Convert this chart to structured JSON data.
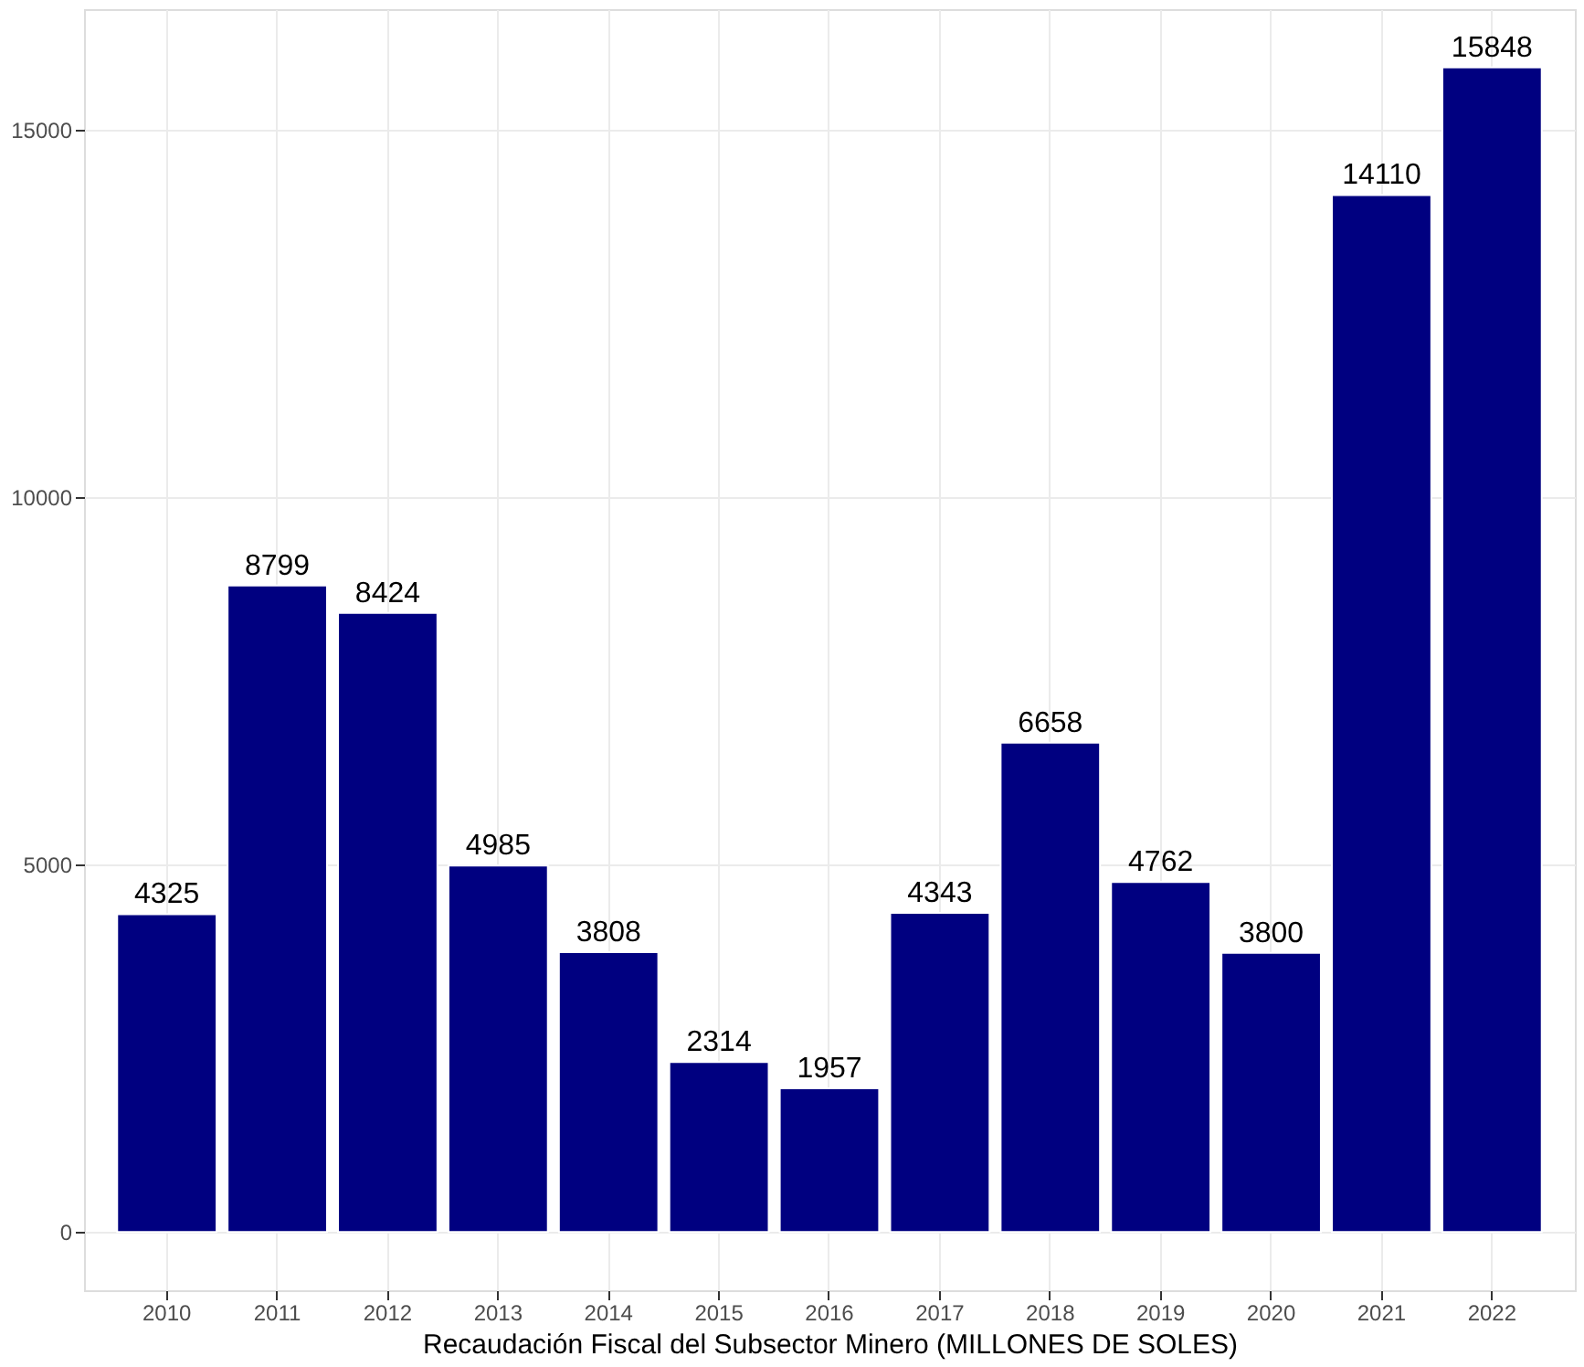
{
  "chart_data": {
    "type": "bar",
    "xlabel": "Recaudación Fiscal del Subsector Minero (MILLONES DE SOLES)",
    "categories": [
      "2010",
      "2011",
      "2012",
      "2013",
      "2014",
      "2015",
      "2016",
      "2017",
      "2018",
      "2019",
      "2020",
      "2021",
      "2022"
    ],
    "values": [
      4325,
      8799,
      8424,
      4985,
      3808,
      2314,
      1957,
      4343,
      6658,
      4762,
      3800,
      14110,
      15848
    ],
    "color": "#000080",
    "ylim": [
      -792,
      16640
    ],
    "yticks": [
      0,
      5000,
      10000,
      15000
    ],
    "grid": true,
    "data_labels": true
  }
}
